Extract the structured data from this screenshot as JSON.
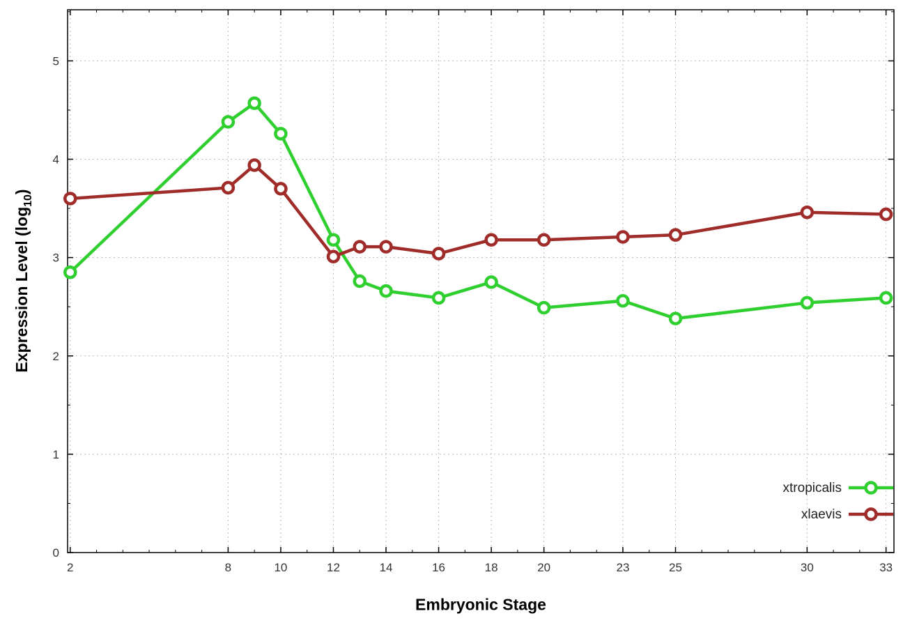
{
  "chart_data": {
    "type": "line",
    "title": "",
    "xlabel": "Embryonic Stage",
    "ylabel_prefix": "Expression Level (log",
    "ylabel_sub": "10",
    "ylabel_suffix": ")",
    "x": [
      2,
      8,
      9,
      10,
      12,
      13,
      14,
      16,
      18,
      20,
      23,
      25,
      30,
      33
    ],
    "series": [
      {
        "name": "xtropicalis",
        "color": "#2fcf2f",
        "values": [
          2.85,
          4.38,
          4.57,
          4.26,
          3.18,
          2.76,
          2.66,
          2.59,
          2.75,
          2.49,
          2.56,
          2.38,
          2.54,
          2.59
        ]
      },
      {
        "name": "xlaevis",
        "color": "#a02c2a",
        "values": [
          3.6,
          3.71,
          3.94,
          3.7,
          3.01,
          3.11,
          3.11,
          3.04,
          3.18,
          3.18,
          3.21,
          3.23,
          3.46,
          3.44
        ]
      }
    ],
    "x_ticks": [
      2,
      8,
      10,
      12,
      14,
      16,
      18,
      20,
      23,
      25,
      30,
      33
    ],
    "y_ticks": [
      0,
      1,
      2,
      3,
      4,
      5
    ],
    "xlim": [
      1.9,
      33.3
    ],
    "ylim": [
      0,
      5.52
    ],
    "grid": true,
    "legend_position": "right-inside",
    "tick_label_color": "#333333",
    "grid_color": "#bbbbbb",
    "border_color": "#000000",
    "marker_fill": "#ffffff"
  }
}
